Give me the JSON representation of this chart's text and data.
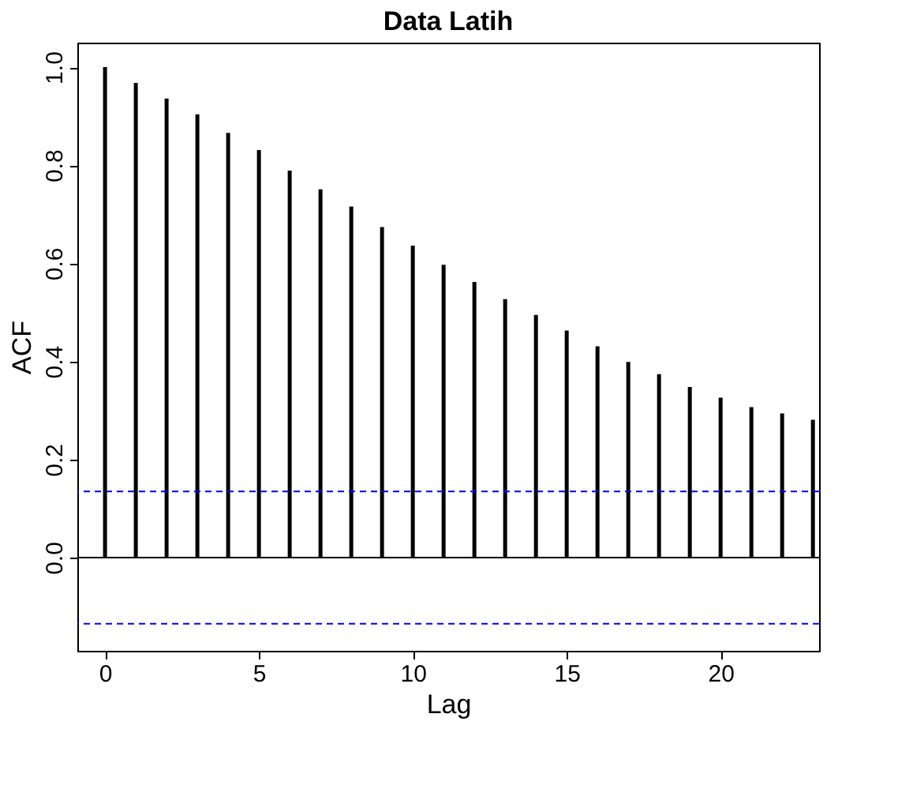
{
  "chart_data": {
    "type": "bar",
    "title": "Data Latih",
    "xlabel": "Lag",
    "ylabel": "ACF",
    "x": [
      0,
      1,
      2,
      3,
      4,
      5,
      6,
      7,
      8,
      9,
      10,
      11,
      12,
      13,
      14,
      15,
      16,
      17,
      18,
      19,
      20,
      21,
      22,
      23
    ],
    "values": [
      1.0,
      0.968,
      0.936,
      0.904,
      0.866,
      0.831,
      0.789,
      0.751,
      0.716,
      0.674,
      0.636,
      0.597,
      0.562,
      0.527,
      0.495,
      0.463,
      0.431,
      0.399,
      0.374,
      0.348,
      0.326,
      0.307,
      0.294,
      0.281
    ],
    "color": "#000000",
    "xlim": [
      -0.9,
      23.2
    ],
    "xticks": [
      0,
      5,
      10,
      15,
      20
    ],
    "ylim": [
      -0.19,
      1.05
    ],
    "yticks": [
      {
        "value": 0,
        "label": "0.0"
      },
      0.2,
      0.4,
      0.6,
      0.8,
      {
        "value": 1,
        "label": "1.0"
      }
    ],
    "ref_lines": [
      {
        "axis": "y",
        "value": 0,
        "color": "#000000",
        "line_style": "solid"
      },
      {
        "axis": "y",
        "value": 0.135,
        "color": "#0000ff",
        "line_style": "dashed"
      },
      {
        "axis": "y",
        "value": -0.135,
        "color": "#0000ff",
        "line_style": "dashed"
      }
    ],
    "grid": false
  }
}
